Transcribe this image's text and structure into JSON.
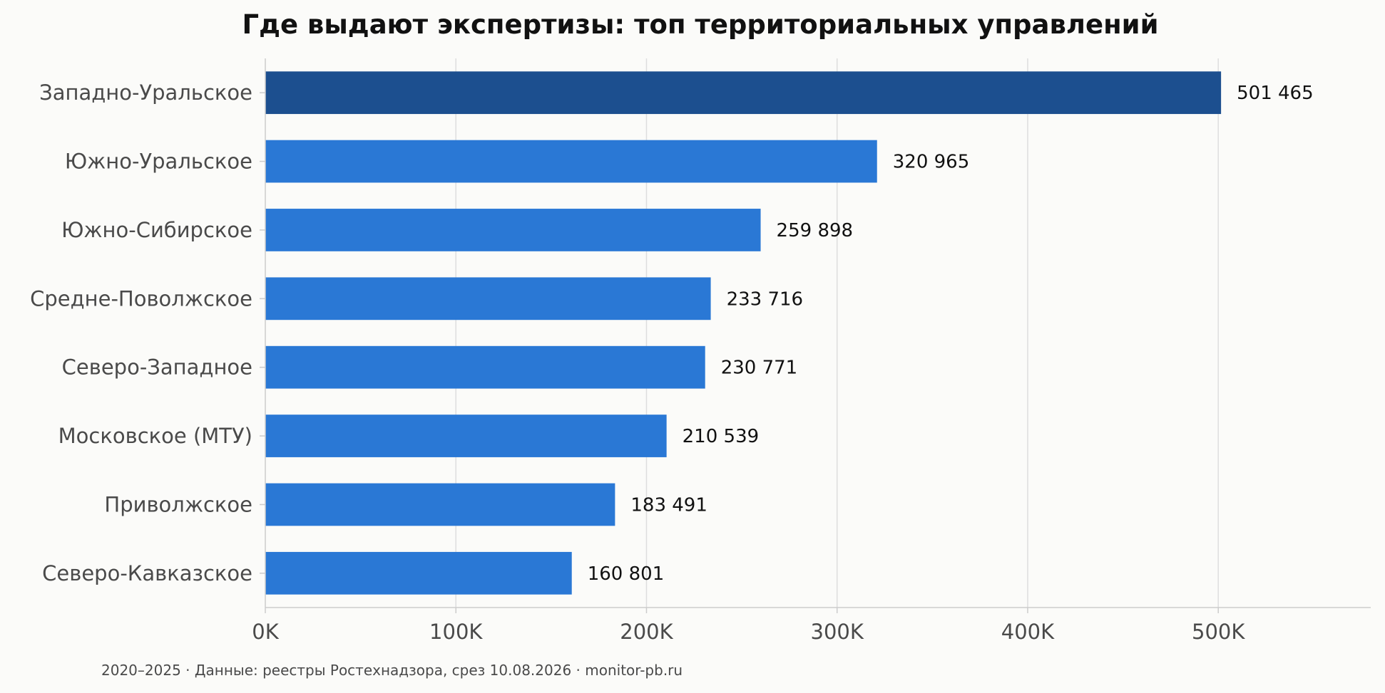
{
  "chart_data": {
    "type": "bar",
    "orientation": "horizontal",
    "title": "Где выдают экспертизы: топ территориальных управлений",
    "categories": [
      "Западно-Уральское",
      "Южно-Уральское",
      "Южно-Сибирское",
      "Средне-Поволжское",
      "Северо-Западное",
      "Московское (МТУ)",
      "Приволжское",
      "Северо-Кавказское"
    ],
    "values": [
      501465,
      320965,
      259898,
      233716,
      230771,
      210539,
      183491,
      160801
    ],
    "value_labels": [
      "501 465",
      "320 965",
      "259 898",
      "233 716",
      "230 771",
      "210 539",
      "183 491",
      "160 801"
    ],
    "xticks": [
      0,
      100000,
      200000,
      300000,
      400000,
      500000
    ],
    "xtick_labels": [
      "0K",
      "100K",
      "200K",
      "300K",
      "400K",
      "500K"
    ],
    "xlim": [
      0,
      580000
    ],
    "xlabel": "",
    "ylabel": "",
    "grid": "vertical",
    "colors": {
      "highlight": "#1c4f8f",
      "bar": "#2a78d5",
      "grid": "#dedede",
      "axis": "#cccccc"
    }
  },
  "footnote": "2020–2025 · Данные: реестры Ростехнадзора, срез 10.08.2026 · monitor-pb.ru"
}
